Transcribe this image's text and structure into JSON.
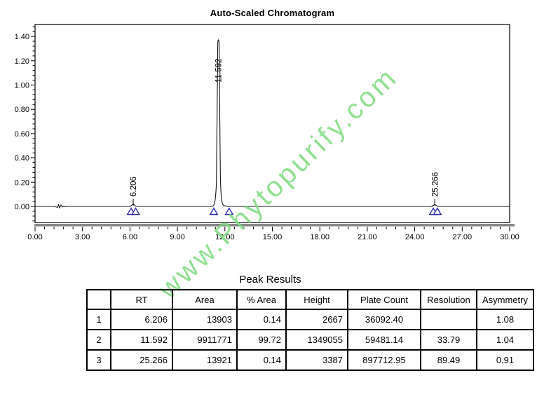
{
  "chart_data": {
    "type": "line",
    "title": "Auto-Scaled Chromatogram",
    "x_axis": {
      "min": 0,
      "max": 30,
      "major_step": 3,
      "minor_step": 0.6,
      "tick_labels": [
        "0.00",
        "3.00",
        "6.00",
        "9.00",
        "12.00",
        "15.00",
        "18.00",
        "21.00",
        "24.00",
        "27.00",
        "30.00"
      ]
    },
    "y_axis": {
      "min": -0.13,
      "max": 1.5,
      "major_step": 0.2,
      "minor_step": 0.04,
      "tick_labels": [
        "0.00",
        "0.20",
        "0.40",
        "0.60",
        "0.80",
        "1.00",
        "1.20",
        "1.40"
      ]
    },
    "baseline_au": 0.0,
    "noise_blip_time_range": [
      1.35,
      1.95
    ],
    "peaks": [
      {
        "rt": "6.206",
        "rt_value": 6.206,
        "apex_au": 0.02,
        "integration_start": 6.07,
        "integration_end": 6.36
      },
      {
        "rt": "11.592",
        "rt_value": 11.592,
        "apex_au": 1.385,
        "integration_start": 11.3,
        "integration_end": 12.27
      },
      {
        "rt": "25.266",
        "rt_value": 25.266,
        "apex_au": 0.018,
        "integration_start": 25.17,
        "integration_end": 25.43
      }
    ],
    "legend": "none",
    "grid": "off",
    "colors": {
      "trace": "#141414",
      "integration_marker": "#2e2eb0",
      "axis_bar": "#8a8a8a",
      "text": "#000000"
    }
  },
  "watermark": {
    "text": "www.Phytopurify.com",
    "color": "#82db82",
    "angle_deg": -44
  },
  "table": {
    "title": "Peak Results",
    "columns": [
      "",
      "RT",
      "Area",
      "% Area",
      "Height",
      "Plate Count",
      "Resolution",
      "Asymmetry"
    ],
    "rows": [
      [
        "1",
        "6.206",
        "13903",
        "0.14",
        "2667",
        "36092.40",
        "",
        "1.08"
      ],
      [
        "2",
        "11.592",
        "9911771",
        "99.72",
        "1349055",
        "59481.14",
        "33.79",
        "1.04"
      ],
      [
        "3",
        "25.266",
        "13921",
        "0.14",
        "3387",
        "897712.95",
        "89.49",
        "0.91"
      ]
    ]
  }
}
